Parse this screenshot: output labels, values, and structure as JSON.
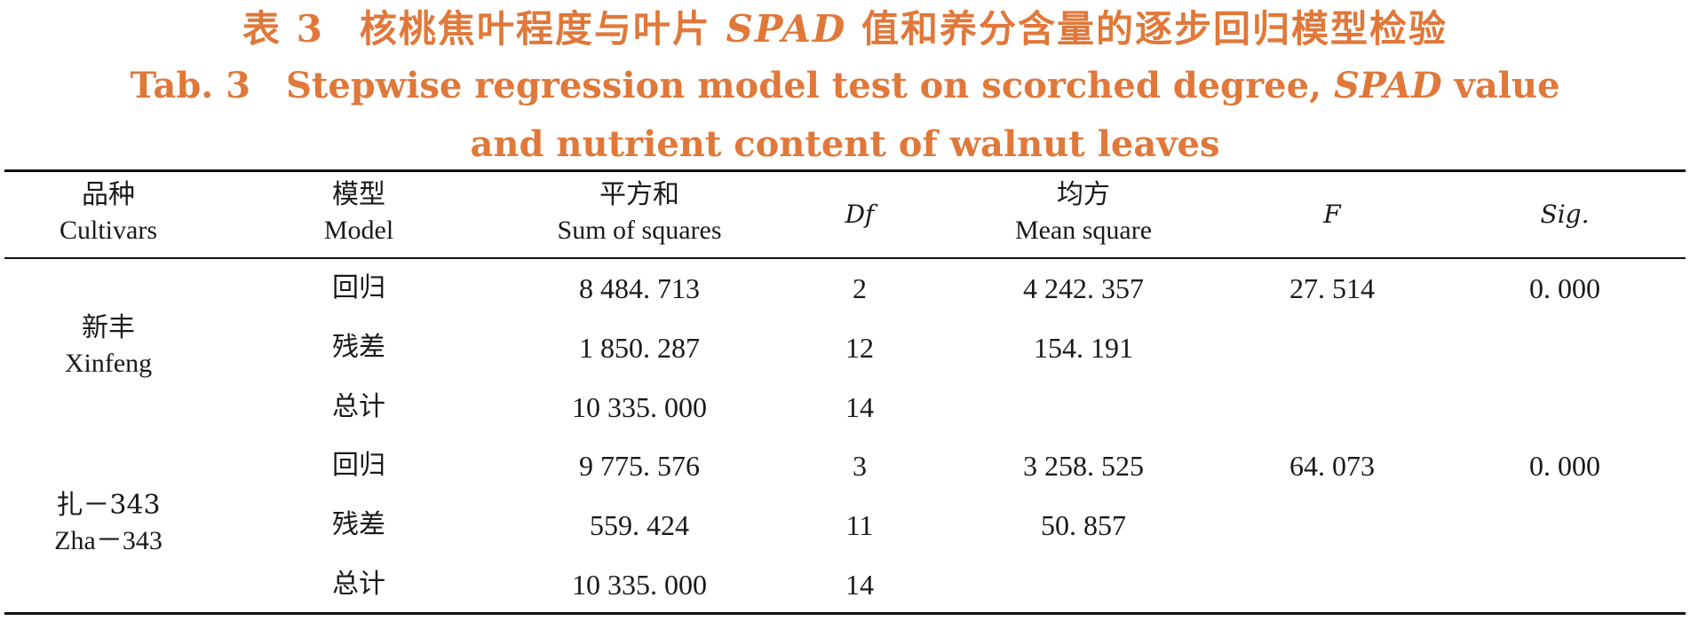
{
  "caption": {
    "cn_prefix": "表 3",
    "cn_text_before": "核桃焦叶程度与叶片 ",
    "cn_italic": "SPAD",
    "cn_text_after": " 值和养分含量的逐步回归模型检验",
    "en_prefix": "Tab. 3",
    "en_text_before": "Stepwise regression model test on scorched degree, ",
    "en_italic": "SPAD",
    "en_text_after": " value",
    "en_line2": "and nutrient content of walnut leaves"
  },
  "table": {
    "headers": [
      {
        "cn": "品种",
        "en": "Cultivars"
      },
      {
        "cn": "模型",
        "en": "Model"
      },
      {
        "cn": "平方和",
        "en": "Sum of squares"
      },
      {
        "cn": "",
        "en": "Df"
      },
      {
        "cn": "均方",
        "en": "Mean square"
      },
      {
        "cn": "",
        "en": "F"
      },
      {
        "cn": "",
        "en": "Sig."
      }
    ],
    "groups": [
      {
        "cultivar_cn": "新丰",
        "cultivar_en": "Xinfeng",
        "rows": [
          {
            "model": "回归",
            "ss": "8 484. 713",
            "df": "2",
            "ms": "4 242. 357",
            "f": "27. 514",
            "sig": "0. 000"
          },
          {
            "model": "残差",
            "ss": "1 850. 287",
            "df": "12",
            "ms": "154. 191",
            "f": "",
            "sig": ""
          },
          {
            "model": "总计",
            "ss": "10 335. 000",
            "df": "14",
            "ms": "",
            "f": "",
            "sig": ""
          }
        ]
      },
      {
        "cultivar_cn": "扎－343",
        "cultivar_en": "Zha－343",
        "rows": [
          {
            "model": "回归",
            "ss": "9 775. 576",
            "df": "3",
            "ms": "3 258. 525",
            "f": "64. 073",
            "sig": "0. 000"
          },
          {
            "model": "残差",
            "ss": "559. 424",
            "df": "11",
            "ms": "50. 857",
            "f": "",
            "sig": ""
          },
          {
            "model": "总计",
            "ss": "10 335. 000",
            "df": "14",
            "ms": "",
            "f": "",
            "sig": ""
          }
        ]
      }
    ]
  }
}
